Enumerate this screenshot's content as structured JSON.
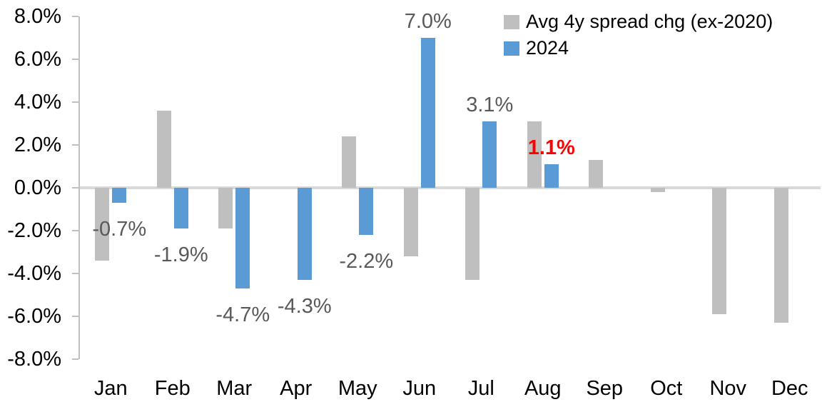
{
  "chart_data": {
    "type": "bar",
    "title": "",
    "xlabel": "",
    "ylabel": "",
    "categories": [
      "Jan",
      "Feb",
      "Mar",
      "Apr",
      "May",
      "Jun",
      "Jul",
      "Aug",
      "Sep",
      "Oct",
      "Nov",
      "Dec"
    ],
    "series": [
      {
        "name": "Avg 4y spread chg (ex-2020)",
        "color": "#bfbfbf",
        "values": [
          -3.4,
          3.6,
          -1.9,
          0.0,
          2.4,
          -3.2,
          -4.3,
          3.1,
          1.3,
          -0.2,
          -5.9,
          -6.3
        ]
      },
      {
        "name": "2024",
        "color": "#5b9bd5",
        "values": [
          -0.7,
          -1.9,
          -4.7,
          -4.3,
          -2.2,
          7.0,
          3.1,
          1.1,
          null,
          null,
          null,
          null
        ],
        "data_labels": [
          "-0.7%",
          "-1.9%",
          "-4.7%",
          "-4.3%",
          "-2.2%",
          "7.0%",
          "3.1%",
          "1.1%",
          null,
          null,
          null,
          null
        ]
      }
    ],
    "emphasized_label": {
      "index": 7,
      "text": "1.1%",
      "color": "#ff0000",
      "bold": true
    },
    "data_label_color": "#595959",
    "y_axis": {
      "min": -8,
      "max": 8,
      "step": 2,
      "tick_labels": [
        "8.0%",
        "6.0%",
        "4.0%",
        "2.0%",
        "0.0%",
        "-2.0%",
        "-4.0%",
        "-6.0%",
        "-8.0%"
      ],
      "format": "percent"
    },
    "grid": false,
    "legend_position": "top-right",
    "axis_color": "#c0c0c0",
    "zero_line_color": "#d9d9d9",
    "text_color": "#000000"
  }
}
